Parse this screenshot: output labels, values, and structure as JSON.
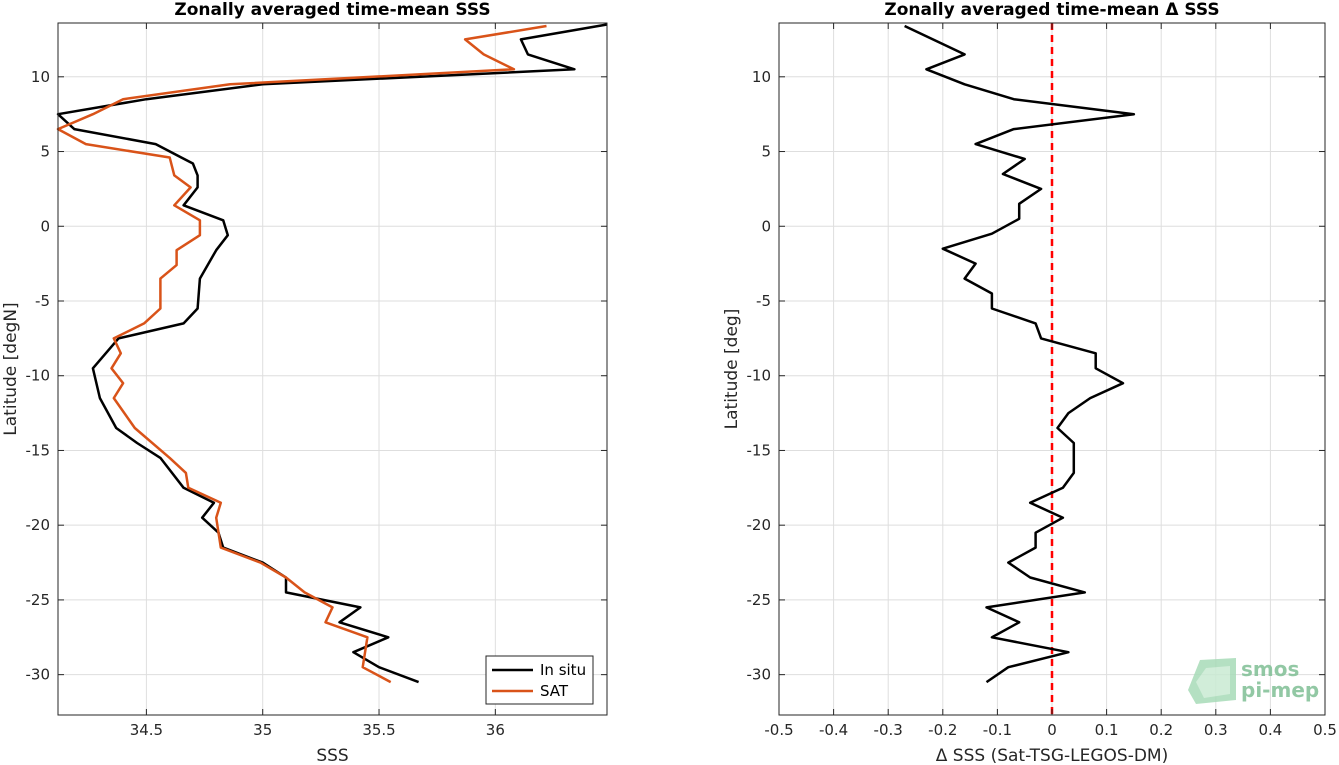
{
  "chart_data": [
    {
      "type": "line",
      "title": "Zonally averaged time-mean SSS",
      "xlabel": "SSS",
      "ylabel": "Latitude [degN]",
      "xlim": [
        34.12,
        36.48
      ],
      "ylim": [
        -32.7,
        13.6
      ],
      "xticks": [
        34.5,
        35,
        35.5,
        36
      ],
      "xtick_labels": [
        "34.5",
        "35",
        "35.5",
        "36"
      ],
      "yticks": [
        -30,
        -25,
        -20,
        -15,
        -10,
        -5,
        0,
        5,
        10
      ],
      "ytick_labels": [
        "-30",
        "-25",
        "-20",
        "-15",
        "-10",
        "-5",
        "0",
        "5",
        "10"
      ],
      "grid": true,
      "legend_location": "bottom-right",
      "series": [
        {
          "name": "In situ",
          "color": "#000000",
          "points": [
            [
              36.48,
              13.5
            ],
            [
              36.11,
              12.5
            ],
            [
              36.14,
              11.5
            ],
            [
              36.34,
              10.5
            ],
            [
              35.0,
              9.5
            ],
            [
              34.5,
              8.5
            ],
            [
              34.12,
              7.5
            ],
            [
              34.19,
              6.5
            ],
            [
              34.54,
              5.5
            ],
            [
              34.65,
              4.6
            ],
            [
              34.7,
              4.2
            ],
            [
              34.72,
              3.4
            ],
            [
              34.72,
              2.6
            ],
            [
              34.66,
              1.4
            ],
            [
              34.83,
              0.4
            ],
            [
              34.85,
              -0.6
            ],
            [
              34.8,
              -1.6
            ],
            [
              34.73,
              -3.5
            ],
            [
              34.72,
              -5.5
            ],
            [
              34.66,
              -6.5
            ],
            [
              34.38,
              -7.5
            ],
            [
              34.27,
              -9.5
            ],
            [
              34.3,
              -11.5
            ],
            [
              34.37,
              -13.5
            ],
            [
              34.46,
              -14.5
            ],
            [
              34.56,
              -15.5
            ],
            [
              34.66,
              -17.5
            ],
            [
              34.79,
              -18.5
            ],
            [
              34.74,
              -19.5
            ],
            [
              34.81,
              -20.5
            ],
            [
              34.83,
              -21.5
            ],
            [
              35.0,
              -22.5
            ],
            [
              35.1,
              -23.5
            ],
            [
              35.1,
              -24.5
            ],
            [
              35.42,
              -25.5
            ],
            [
              35.33,
              -26.5
            ],
            [
              35.54,
              -27.5
            ],
            [
              35.39,
              -28.5
            ],
            [
              35.5,
              -29.5
            ],
            [
              35.67,
              -30.5
            ]
          ]
        },
        {
          "name": "SAT",
          "color": "#d95319",
          "points": [
            [
              36.22,
              13.4
            ],
            [
              35.87,
              12.5
            ],
            [
              35.95,
              11.5
            ],
            [
              36.08,
              10.5
            ],
            [
              34.86,
              9.5
            ],
            [
              34.4,
              8.5
            ],
            [
              34.27,
              7.5
            ],
            [
              34.12,
              6.5
            ],
            [
              34.24,
              5.5
            ],
            [
              34.6,
              4.6
            ],
            [
              34.62,
              3.4
            ],
            [
              34.69,
              2.6
            ],
            [
              34.62,
              1.4
            ],
            [
              34.73,
              0.4
            ],
            [
              34.73,
              -0.6
            ],
            [
              34.63,
              -1.6
            ],
            [
              34.63,
              -2.6
            ],
            [
              34.56,
              -3.5
            ],
            [
              34.56,
              -5.5
            ],
            [
              34.49,
              -6.5
            ],
            [
              34.36,
              -7.5
            ],
            [
              34.39,
              -8.5
            ],
            [
              34.35,
              -9.5
            ],
            [
              34.4,
              -10.5
            ],
            [
              34.36,
              -11.5
            ],
            [
              34.45,
              -13.5
            ],
            [
              34.6,
              -15.5
            ],
            [
              34.67,
              -16.5
            ],
            [
              34.68,
              -17.5
            ],
            [
              34.82,
              -18.5
            ],
            [
              34.8,
              -19.5
            ],
            [
              34.82,
              -21.5
            ],
            [
              34.99,
              -22.5
            ],
            [
              35.1,
              -23.5
            ],
            [
              35.18,
              -24.5
            ],
            [
              35.3,
              -25.5
            ],
            [
              35.27,
              -26.5
            ],
            [
              35.45,
              -27.5
            ],
            [
              35.43,
              -29.5
            ],
            [
              35.55,
              -30.5
            ]
          ]
        }
      ]
    },
    {
      "type": "line",
      "title": "Zonally averaged time-mean Δ SSS",
      "xlabel": "Δ SSS (Sat-TSG-LEGOS-DM)",
      "ylabel": "Latitude [deg]",
      "xlim": [
        -0.5,
        0.5
      ],
      "ylim": [
        -32.7,
        13.6
      ],
      "xticks": [
        -0.5,
        -0.4,
        -0.3,
        -0.2,
        -0.1,
        0,
        0.1,
        0.2,
        0.3,
        0.4,
        0.5
      ],
      "xtick_labels": [
        "-0.5",
        "-0.4",
        "-0.3",
        "-0.2",
        "-0.1",
        "0",
        "0.1",
        "0.2",
        "0.3",
        "0.4",
        "0.5"
      ],
      "yticks": [
        -30,
        -25,
        -20,
        -15,
        -10,
        -5,
        0,
        5,
        10
      ],
      "ytick_labels": [
        "-30",
        "-25",
        "-20",
        "-15",
        "-10",
        "-5",
        "0",
        "5",
        "10"
      ],
      "grid": true,
      "reference_line": {
        "x": 0,
        "color": "#ff0000",
        "style": "dashed"
      },
      "series": [
        {
          "color": "#000000",
          "points": [
            [
              -0.27,
              13.4
            ],
            [
              -0.16,
              11.5
            ],
            [
              -0.23,
              10.5
            ],
            [
              -0.16,
              9.5
            ],
            [
              -0.07,
              8.5
            ],
            [
              0.15,
              7.5
            ],
            [
              -0.07,
              6.5
            ],
            [
              -0.14,
              5.5
            ],
            [
              -0.05,
              4.5
            ],
            [
              -0.09,
              3.5
            ],
            [
              -0.02,
              2.5
            ],
            [
              -0.06,
              1.5
            ],
            [
              -0.06,
              0.5
            ],
            [
              -0.11,
              -0.5
            ],
            [
              -0.2,
              -1.5
            ],
            [
              -0.14,
              -2.5
            ],
            [
              -0.16,
              -3.5
            ],
            [
              -0.11,
              -4.5
            ],
            [
              -0.11,
              -5.5
            ],
            [
              -0.03,
              -6.5
            ],
            [
              -0.02,
              -7.5
            ],
            [
              0.08,
              -8.5
            ],
            [
              0.08,
              -9.5
            ],
            [
              0.13,
              -10.5
            ],
            [
              0.07,
              -11.5
            ],
            [
              0.03,
              -12.5
            ],
            [
              0.01,
              -13.5
            ],
            [
              0.04,
              -14.5
            ],
            [
              0.04,
              -15.5
            ],
            [
              0.04,
              -16.5
            ],
            [
              0.02,
              -17.5
            ],
            [
              -0.04,
              -18.5
            ],
            [
              0.02,
              -19.5
            ],
            [
              -0.03,
              -20.5
            ],
            [
              -0.03,
              -21.5
            ],
            [
              -0.08,
              -22.5
            ],
            [
              -0.04,
              -23.5
            ],
            [
              0.06,
              -24.5
            ],
            [
              -0.12,
              -25.5
            ],
            [
              -0.06,
              -26.5
            ],
            [
              -0.11,
              -27.5
            ],
            [
              0.03,
              -28.5
            ],
            [
              -0.08,
              -29.5
            ],
            [
              -0.12,
              -30.5
            ]
          ]
        }
      ]
    }
  ],
  "logo": {
    "line1": "smos",
    "line2": "pi-mep"
  }
}
